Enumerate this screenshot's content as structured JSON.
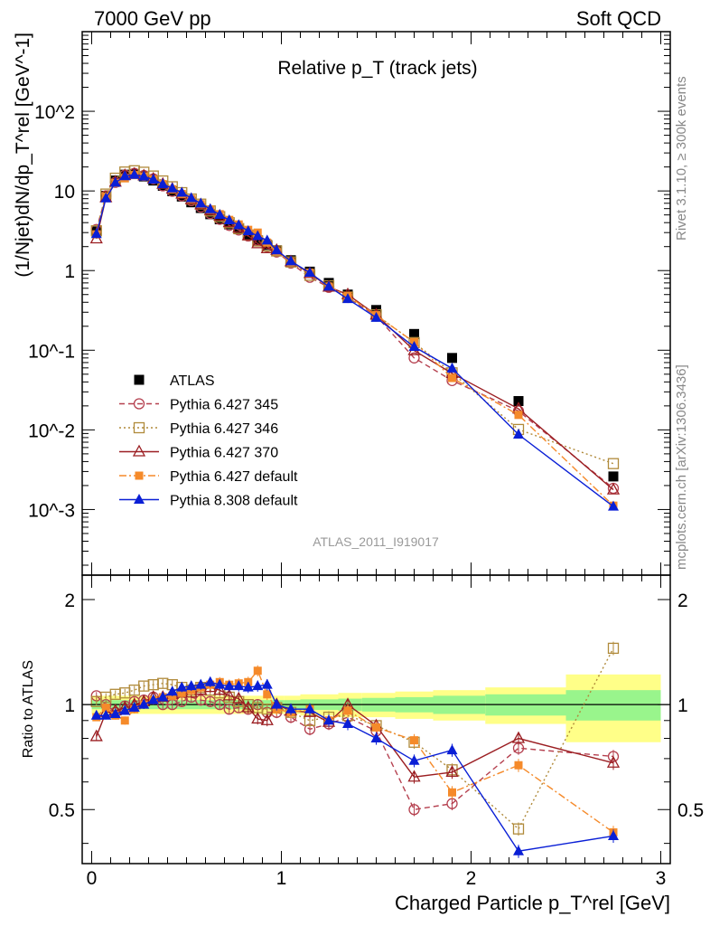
{
  "header": {
    "left": "7000 GeV pp",
    "right": "Soft QCD"
  },
  "side": {
    "rivet": "Rivet 3.1.10, ≥ 300k events",
    "mcplots": "mcplots.cern.ch [arXiv:1306.3436]"
  },
  "chart_data": {
    "type": "line",
    "title": "Relative p_T (track jets)",
    "xlabel": "Charged Particle p_T^rel [GeV]",
    "ylabel": "(1/Njet)dN/dp_T^rel [GeV^-1]",
    "ratio_ylabel": "Ratio to ATLAS",
    "watermark": "ATLAS_2011_I919017",
    "xlim": [
      -0.05,
      3.05
    ],
    "ylim": [
      0.00015,
      1000
    ],
    "yscale": "log",
    "ratio_ylim": [
      0.35,
      2.35
    ],
    "legend_position": "bottom-left",
    "x_ticks": [
      "0",
      "1",
      "2",
      "3"
    ],
    "y_ticks": [
      "10^-3",
      "10^-2",
      "10^-1",
      "1",
      "10",
      "10^2"
    ],
    "ratio_ticks": [
      "0.5",
      "1",
      "2"
    ],
    "x": [
      0.025,
      0.075,
      0.125,
      0.175,
      0.225,
      0.275,
      0.325,
      0.375,
      0.425,
      0.475,
      0.525,
      0.575,
      0.625,
      0.675,
      0.725,
      0.775,
      0.825,
      0.875,
      0.925,
      0.975,
      1.05,
      1.15,
      1.25,
      1.35,
      1.5,
      1.7,
      1.9,
      2.25,
      2.75
    ],
    "atlas": {
      "name": "ATLAS",
      "color": "#000000",
      "values": [
        3.1,
        8.7,
        13.5,
        16.0,
        16.3,
        15.2,
        13.5,
        11.6,
        9.9,
        8.5,
        7.2,
        6.1,
        5.1,
        4.4,
        3.8,
        3.3,
        2.8,
        2.4,
        2.1,
        1.8,
        1.35,
        0.97,
        0.7,
        0.5,
        0.32,
        0.16,
        0.08,
        0.023,
        0.0026
      ],
      "band_stat": [
        0.03,
        0.03,
        0.03,
        0.03,
        0.03,
        0.03,
        0.03,
        0.03,
        0.03,
        0.03,
        0.03,
        0.03,
        0.03,
        0.03,
        0.03,
        0.03,
        0.03,
        0.03,
        0.03,
        0.03,
        0.03,
        0.035,
        0.035,
        0.04,
        0.045,
        0.05,
        0.06,
        0.07,
        0.1
      ],
      "band_total": [
        0.06,
        0.06,
        0.06,
        0.06,
        0.06,
        0.06,
        0.06,
        0.06,
        0.06,
        0.06,
        0.06,
        0.06,
        0.06,
        0.06,
        0.06,
        0.06,
        0.06,
        0.06,
        0.06,
        0.06,
        0.06,
        0.07,
        0.07,
        0.08,
        0.08,
        0.09,
        0.1,
        0.12,
        0.22
      ]
    },
    "series": [
      {
        "name": "Pythia 6.427 345",
        "color": "#b5404f",
        "dash": "6,4",
        "marker": "circle-open",
        "ratio": [
          1.06,
          1.0,
          0.95,
          0.99,
          1.02,
          1.03,
          1.05,
          1.0,
          1.0,
          1.02,
          1.05,
          1.03,
          1.02,
          1.0,
          0.97,
          0.98,
          0.97,
          1.0,
          0.95,
          0.95,
          0.92,
          0.85,
          0.88,
          0.92,
          0.84,
          0.5,
          0.52,
          0.75,
          0.71
        ]
      },
      {
        "name": "Pythia 6.427 346",
        "color": "#b08a3a",
        "dash": "2,3",
        "marker": "square-open",
        "ratio": [
          1.02,
          1.05,
          1.07,
          1.08,
          1.1,
          1.13,
          1.14,
          1.15,
          1.14,
          1.12,
          1.1,
          1.12,
          1.1,
          1.08,
          1.05,
          1.02,
          1.0,
          0.98,
          0.97,
          0.98,
          0.95,
          0.9,
          0.92,
          0.93,
          0.87,
          0.78,
          0.65,
          0.44,
          1.45
        ]
      },
      {
        "name": "Pythia 6.427 370",
        "color": "#9b1e22",
        "dash": "",
        "marker": "triangle-open",
        "ratio": [
          0.81,
          0.95,
          0.96,
          0.98,
          1.0,
          1.02,
          1.05,
          1.05,
          1.07,
          1.08,
          1.08,
          1.1,
          1.12,
          1.1,
          1.06,
          1.04,
          0.98,
          0.91,
          0.9,
          1.0,
          0.96,
          0.95,
          0.89,
          1.0,
          0.87,
          0.62,
          0.64,
          0.8,
          0.68
        ]
      },
      {
        "name": "Pythia 6.427 default",
        "color": "#f58a2a",
        "dash": "8,3,2,3",
        "marker": "square-filled",
        "ratio": [
          0.92,
          0.98,
          0.93,
          0.9,
          0.97,
          1.0,
          1.03,
          1.05,
          1.06,
          1.08,
          1.1,
          1.12,
          1.14,
          1.16,
          1.14,
          1.15,
          1.16,
          1.25,
          1.07,
          0.97,
          0.95,
          0.97,
          0.9,
          0.96,
          0.86,
          0.79,
          0.56,
          0.67,
          0.43
        ]
      },
      {
        "name": "Pythia 8.308 default",
        "color": "#0a1fd6",
        "dash": "",
        "marker": "triangle-filled",
        "ratio": [
          0.93,
          0.93,
          0.94,
          0.96,
          0.98,
          1.0,
          1.03,
          1.05,
          1.09,
          1.12,
          1.13,
          1.14,
          1.16,
          1.14,
          1.13,
          1.13,
          1.12,
          1.13,
          1.14,
          1.0,
          0.97,
          0.97,
          0.9,
          0.88,
          0.8,
          0.69,
          0.74,
          0.38,
          0.42
        ]
      }
    ]
  }
}
